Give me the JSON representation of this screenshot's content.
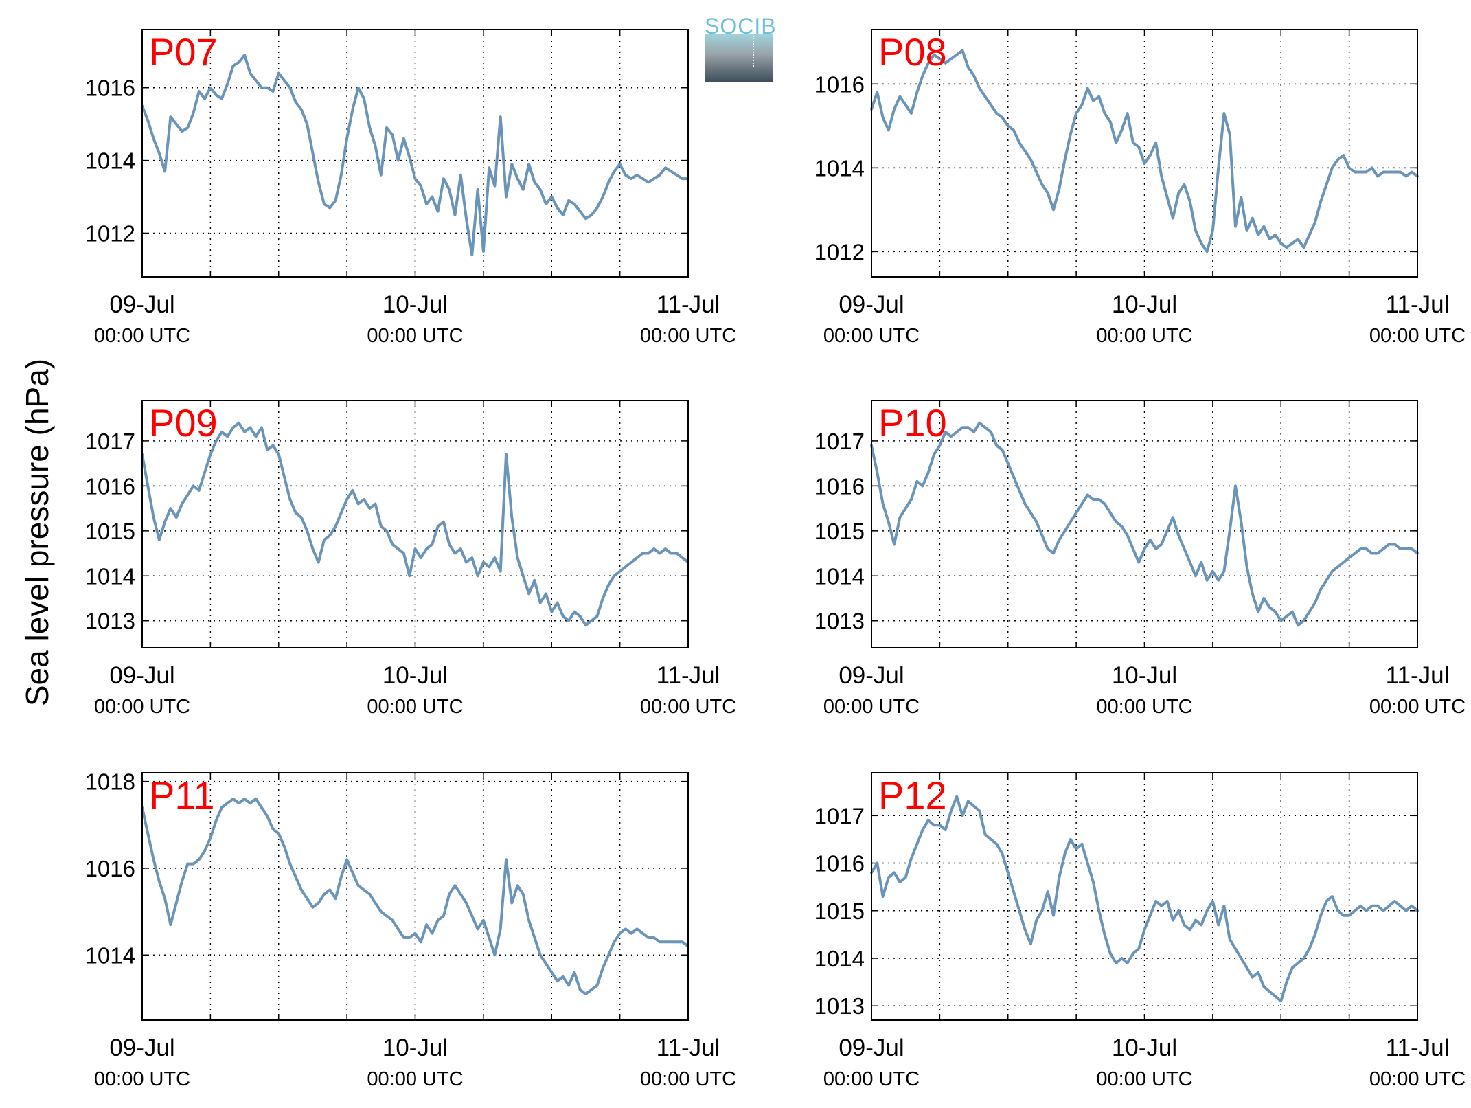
{
  "figure": {
    "ylabel": "Sea level pressure (hPa)",
    "logo_text": "SOCIB",
    "line_color": "#6a94b8",
    "station_color": "#ff0000",
    "xticks": [
      {
        "main": "09-Jul",
        "sub": "00:00 UTC"
      },
      {
        "main": "10-Jul",
        "sub": "00:00 UTC"
      },
      {
        "main": "11-Jul",
        "sub": "00:00 UTC"
      }
    ]
  },
  "chart_data": [
    {
      "type": "line",
      "station": "P07",
      "xlim": [
        0,
        48
      ],
      "ylim": [
        1010.8,
        1017.6
      ],
      "yticks": [
        1012,
        1014,
        1016
      ],
      "x": [
        0,
        0.5,
        1,
        1.5,
        2,
        2.5,
        3,
        3.5,
        4,
        4.5,
        5,
        5.5,
        6,
        6.5,
        7,
        7.5,
        8,
        8.5,
        9,
        9.5,
        10,
        10.5,
        11,
        11.5,
        12,
        12.5,
        13,
        13.5,
        14,
        14.5,
        15,
        15.5,
        16,
        16.5,
        17,
        17.5,
        18,
        18.5,
        19,
        19.5,
        20,
        20.5,
        21,
        21.5,
        22,
        22.5,
        23,
        23.5,
        24,
        24.5,
        25,
        25.5,
        26,
        26.5,
        27,
        27.5,
        28,
        28.5,
        29,
        29.5,
        30,
        30.5,
        31,
        31.5,
        32,
        32.5,
        33,
        33.5,
        34,
        34.5,
        35,
        35.5,
        36,
        36.5,
        37,
        37.5,
        38,
        38.5,
        39,
        39.5,
        40,
        40.5,
        41,
        41.5,
        42,
        42.5,
        43,
        43.5,
        44,
        44.5,
        45,
        45.5,
        46,
        46.5,
        47,
        47.5,
        48
      ],
      "y": [
        1015.5,
        1015.1,
        1014.6,
        1014.2,
        1013.7,
        1015.2,
        1015.0,
        1014.8,
        1014.9,
        1015.3,
        1015.9,
        1015.7,
        1016.0,
        1015.8,
        1015.7,
        1016.1,
        1016.6,
        1016.7,
        1016.9,
        1016.4,
        1016.2,
        1016.0,
        1016.0,
        1015.9,
        1016.4,
        1016.2,
        1016.0,
        1015.6,
        1015.4,
        1015.0,
        1014.2,
        1013.4,
        1012.8,
        1012.7,
        1012.9,
        1013.6,
        1014.6,
        1015.4,
        1016.0,
        1015.7,
        1014.9,
        1014.4,
        1013.6,
        1014.9,
        1014.7,
        1014.0,
        1014.6,
        1014.1,
        1013.5,
        1013.3,
        1012.8,
        1013.0,
        1012.6,
        1013.5,
        1013.2,
        1012.5,
        1013.6,
        1012.4,
        1011.4,
        1013.2,
        1011.5,
        1013.8,
        1013.3,
        1015.2,
        1013.0,
        1013.9,
        1013.5,
        1013.2,
        1013.9,
        1013.4,
        1013.2,
        1012.8,
        1013.0,
        1012.7,
        1012.5,
        1012.9,
        1012.8,
        1012.6,
        1012.4,
        1012.5,
        1012.7,
        1013.0,
        1013.4,
        1013.7,
        1013.9,
        1013.6,
        1013.5,
        1013.6,
        1013.5,
        1013.4,
        1013.5,
        1013.6,
        1013.8,
        1013.7,
        1013.6,
        1013.5,
        1013.5
      ]
    },
    {
      "type": "line",
      "station": "P08",
      "xlim": [
        0,
        48
      ],
      "ylim": [
        1011.4,
        1017.3
      ],
      "yticks": [
        1012,
        1014,
        1016
      ],
      "x": [
        0,
        0.5,
        1,
        1.5,
        2,
        2.5,
        3,
        3.5,
        4,
        4.5,
        5,
        5.5,
        6,
        6.5,
        7,
        7.5,
        8,
        8.5,
        9,
        9.5,
        10,
        10.5,
        11,
        11.5,
        12,
        12.5,
        13,
        13.5,
        14,
        14.5,
        15,
        15.5,
        16,
        16.5,
        17,
        17.5,
        18,
        18.5,
        19,
        19.5,
        20,
        20.5,
        21,
        21.5,
        22,
        22.5,
        23,
        23.5,
        24,
        24.5,
        25,
        25.5,
        26,
        26.5,
        27,
        27.5,
        28,
        28.5,
        29,
        29.5,
        30,
        30.5,
        31,
        31.5,
        32,
        32.5,
        33,
        33.5,
        34,
        34.5,
        35,
        35.5,
        36,
        36.5,
        37,
        37.5,
        38,
        38.5,
        39,
        39.5,
        40,
        40.5,
        41,
        41.5,
        42,
        42.5,
        43,
        43.5,
        44,
        44.5,
        45,
        45.5,
        46,
        46.5,
        47,
        47.5,
        48
      ],
      "y": [
        1015.4,
        1015.8,
        1015.2,
        1014.9,
        1015.4,
        1015.7,
        1015.5,
        1015.3,
        1015.8,
        1016.2,
        1016.5,
        1016.7,
        1016.6,
        1016.5,
        1016.6,
        1016.7,
        1016.8,
        1016.4,
        1016.2,
        1015.9,
        1015.7,
        1015.5,
        1015.3,
        1015.2,
        1015.0,
        1014.9,
        1014.6,
        1014.4,
        1014.2,
        1013.9,
        1013.6,
        1013.4,
        1013.0,
        1013.5,
        1014.2,
        1014.8,
        1015.3,
        1015.5,
        1015.9,
        1015.6,
        1015.7,
        1015.3,
        1015.1,
        1014.6,
        1014.9,
        1015.3,
        1014.6,
        1014.5,
        1014.1,
        1014.3,
        1014.6,
        1013.8,
        1013.3,
        1012.8,
        1013.4,
        1013.6,
        1013.2,
        1012.5,
        1012.2,
        1012.0,
        1012.5,
        1014.0,
        1015.3,
        1014.8,
        1012.6,
        1013.3,
        1012.5,
        1012.8,
        1012.4,
        1012.6,
        1012.3,
        1012.4,
        1012.2,
        1012.1,
        1012.2,
        1012.3,
        1012.1,
        1012.4,
        1012.7,
        1013.2,
        1013.6,
        1014.0,
        1014.2,
        1014.3,
        1014.0,
        1013.9,
        1013.9,
        1013.9,
        1014.0,
        1013.8,
        1013.9,
        1013.9,
        1013.9,
        1013.9,
        1013.8,
        1013.9,
        1013.8
      ]
    },
    {
      "type": "line",
      "station": "P09",
      "xlim": [
        0,
        48
      ],
      "ylim": [
        1012.4,
        1017.9
      ],
      "yticks": [
        1013,
        1014,
        1015,
        1016,
        1017
      ],
      "x": [
        0,
        0.5,
        1,
        1.5,
        2,
        2.5,
        3,
        3.5,
        4,
        4.5,
        5,
        5.5,
        6,
        6.5,
        7,
        7.5,
        8,
        8.5,
        9,
        9.5,
        10,
        10.5,
        11,
        11.5,
        12,
        12.5,
        13,
        13.5,
        14,
        14.5,
        15,
        15.5,
        16,
        16.5,
        17,
        17.5,
        18,
        18.5,
        19,
        19.5,
        20,
        20.5,
        21,
        21.5,
        22,
        22.5,
        23,
        23.5,
        24,
        24.5,
        25,
        25.5,
        26,
        26.5,
        27,
        27.5,
        28,
        28.5,
        29,
        29.5,
        30,
        30.5,
        31,
        31.5,
        32,
        32.5,
        33,
        33.5,
        34,
        34.5,
        35,
        35.5,
        36,
        36.5,
        37,
        37.5,
        38,
        38.5,
        39,
        39.5,
        40,
        40.5,
        41,
        41.5,
        42,
        42.5,
        43,
        43.5,
        44,
        44.5,
        45,
        45.5,
        46,
        46.5,
        47,
        47.5,
        48
      ],
      "y": [
        1016.7,
        1016.0,
        1015.3,
        1014.8,
        1015.2,
        1015.5,
        1015.3,
        1015.6,
        1015.8,
        1016.0,
        1015.9,
        1016.3,
        1016.7,
        1017.0,
        1017.2,
        1017.1,
        1017.3,
        1017.4,
        1017.2,
        1017.3,
        1017.1,
        1017.3,
        1016.8,
        1016.9,
        1016.7,
        1016.2,
        1015.7,
        1015.4,
        1015.3,
        1015.0,
        1014.6,
        1014.3,
        1014.8,
        1014.9,
        1015.1,
        1015.4,
        1015.7,
        1015.9,
        1015.6,
        1015.7,
        1015.5,
        1015.6,
        1015.1,
        1015.0,
        1014.7,
        1014.6,
        1014.5,
        1014.0,
        1014.6,
        1014.4,
        1014.6,
        1014.7,
        1015.1,
        1015.2,
        1014.7,
        1014.5,
        1014.6,
        1014.3,
        1014.4,
        1014.0,
        1014.3,
        1014.2,
        1014.4,
        1014.1,
        1016.7,
        1015.3,
        1014.4,
        1014.0,
        1013.6,
        1013.9,
        1013.4,
        1013.6,
        1013.2,
        1013.4,
        1013.1,
        1013.0,
        1013.2,
        1013.1,
        1012.9,
        1013.0,
        1013.1,
        1013.5,
        1013.8,
        1014.0,
        1014.1,
        1014.2,
        1014.3,
        1014.4,
        1014.5,
        1014.5,
        1014.6,
        1014.5,
        1014.6,
        1014.5,
        1014.5,
        1014.4,
        1014.3
      ]
    },
    {
      "type": "line",
      "station": "P10",
      "xlim": [
        0,
        48
      ],
      "ylim": [
        1012.4,
        1017.9
      ],
      "yticks": [
        1013,
        1014,
        1015,
        1016,
        1017
      ],
      "x": [
        0,
        0.5,
        1,
        1.5,
        2,
        2.5,
        3,
        3.5,
        4,
        4.5,
        5,
        5.5,
        6,
        6.5,
        7,
        7.5,
        8,
        8.5,
        9,
        9.5,
        10,
        10.5,
        11,
        11.5,
        12,
        12.5,
        13,
        13.5,
        14,
        14.5,
        15,
        15.5,
        16,
        16.5,
        17,
        17.5,
        18,
        18.5,
        19,
        19.5,
        20,
        20.5,
        21,
        21.5,
        22,
        22.5,
        23,
        23.5,
        24,
        24.5,
        25,
        25.5,
        26,
        26.5,
        27,
        27.5,
        28,
        28.5,
        29,
        29.5,
        30,
        30.5,
        31,
        31.5,
        32,
        32.5,
        33,
        33.5,
        34,
        34.5,
        35,
        35.5,
        36,
        36.5,
        37,
        37.5,
        38,
        38.5,
        39,
        39.5,
        40,
        40.5,
        41,
        41.5,
        42,
        42.5,
        43,
        43.5,
        44,
        44.5,
        45,
        45.5,
        46,
        46.5,
        47,
        47.5,
        48
      ],
      "y": [
        1016.9,
        1016.3,
        1015.6,
        1015.2,
        1014.7,
        1015.3,
        1015.5,
        1015.7,
        1016.1,
        1016.0,
        1016.3,
        1016.7,
        1016.9,
        1017.2,
        1017.1,
        1017.2,
        1017.3,
        1017.3,
        1017.2,
        1017.4,
        1017.3,
        1017.2,
        1016.9,
        1016.8,
        1016.5,
        1016.2,
        1015.9,
        1015.6,
        1015.4,
        1015.2,
        1014.9,
        1014.6,
        1014.5,
        1014.8,
        1015.0,
        1015.2,
        1015.4,
        1015.6,
        1015.8,
        1015.7,
        1015.7,
        1015.6,
        1015.4,
        1015.2,
        1015.1,
        1014.9,
        1014.6,
        1014.3,
        1014.6,
        1014.8,
        1014.6,
        1014.7,
        1015.0,
        1015.3,
        1014.9,
        1014.6,
        1014.3,
        1014.0,
        1014.3,
        1013.9,
        1014.1,
        1013.9,
        1014.1,
        1015.0,
        1016.0,
        1015.2,
        1014.2,
        1013.6,
        1013.2,
        1013.5,
        1013.3,
        1013.2,
        1013.0,
        1013.1,
        1013.2,
        1012.9,
        1013.0,
        1013.2,
        1013.4,
        1013.7,
        1013.9,
        1014.1,
        1014.2,
        1014.3,
        1014.4,
        1014.5,
        1014.6,
        1014.6,
        1014.5,
        1014.5,
        1014.6,
        1014.7,
        1014.7,
        1014.6,
        1014.6,
        1014.6,
        1014.5
      ]
    },
    {
      "type": "line",
      "station": "P11",
      "xlim": [
        0,
        48
      ],
      "ylim": [
        1012.5,
        1018.2
      ],
      "yticks": [
        1014,
        1016,
        1018
      ],
      "x": [
        0,
        0.5,
        1,
        1.5,
        2,
        2.5,
        3,
        3.5,
        4,
        4.5,
        5,
        5.5,
        6,
        6.5,
        7,
        7.5,
        8,
        8.5,
        9,
        9.5,
        10,
        10.5,
        11,
        11.5,
        12,
        12.5,
        13,
        13.5,
        14,
        14.5,
        15,
        15.5,
        16,
        16.5,
        17,
        17.5,
        18,
        18.5,
        19,
        19.5,
        20,
        20.5,
        21,
        21.5,
        22,
        22.5,
        23,
        23.5,
        24,
        24.5,
        25,
        25.5,
        26,
        26.5,
        27,
        27.5,
        28,
        28.5,
        29,
        29.5,
        30,
        30.5,
        31,
        31.5,
        32,
        32.5,
        33,
        33.5,
        34,
        34.5,
        35,
        35.5,
        36,
        36.5,
        37,
        37.5,
        38,
        38.5,
        39,
        39.5,
        40,
        40.5,
        41,
        41.5,
        42,
        42.5,
        43,
        43.5,
        44,
        44.5,
        45,
        45.5,
        46,
        46.5,
        47,
        47.5,
        48
      ],
      "y": [
        1017.4,
        1016.8,
        1016.2,
        1015.7,
        1015.3,
        1014.7,
        1015.2,
        1015.7,
        1016.1,
        1016.1,
        1016.2,
        1016.4,
        1016.7,
        1017.1,
        1017.4,
        1017.5,
        1017.6,
        1017.5,
        1017.6,
        1017.5,
        1017.6,
        1017.4,
        1017.2,
        1016.9,
        1016.8,
        1016.5,
        1016.1,
        1015.8,
        1015.5,
        1015.3,
        1015.1,
        1015.2,
        1015.4,
        1015.5,
        1015.3,
        1015.8,
        1016.2,
        1015.9,
        1015.6,
        1015.5,
        1015.4,
        1015.2,
        1015.0,
        1014.9,
        1014.8,
        1014.6,
        1014.4,
        1014.4,
        1014.5,
        1014.3,
        1014.7,
        1014.5,
        1014.8,
        1014.9,
        1015.4,
        1015.6,
        1015.4,
        1015.2,
        1014.9,
        1014.6,
        1014.8,
        1014.4,
        1014.0,
        1014.6,
        1016.2,
        1015.2,
        1015.6,
        1015.4,
        1014.8,
        1014.4,
        1014.0,
        1013.8,
        1013.6,
        1013.4,
        1013.5,
        1013.3,
        1013.6,
        1013.2,
        1013.1,
        1013.2,
        1013.3,
        1013.7,
        1014.0,
        1014.3,
        1014.5,
        1014.6,
        1014.5,
        1014.6,
        1014.5,
        1014.4,
        1014.4,
        1014.3,
        1014.3,
        1014.3,
        1014.3,
        1014.3,
        1014.2
      ]
    },
    {
      "type": "line",
      "station": "P12",
      "xlim": [
        0,
        48
      ],
      "ylim": [
        1012.7,
        1017.9
      ],
      "yticks": [
        1013,
        1014,
        1015,
        1016,
        1017
      ],
      "x": [
        0,
        0.5,
        1,
        1.5,
        2,
        2.5,
        3,
        3.5,
        4,
        4.5,
        5,
        5.5,
        6,
        6.5,
        7,
        7.5,
        8,
        8.5,
        9,
        9.5,
        10,
        10.5,
        11,
        11.5,
        12,
        12.5,
        13,
        13.5,
        14,
        14.5,
        15,
        15.5,
        16,
        16.5,
        17,
        17.5,
        18,
        18.5,
        19,
        19.5,
        20,
        20.5,
        21,
        21.5,
        22,
        22.5,
        23,
        23.5,
        24,
        24.5,
        25,
        25.5,
        26,
        26.5,
        27,
        27.5,
        28,
        28.5,
        29,
        29.5,
        30,
        30.5,
        31,
        31.5,
        32,
        32.5,
        33,
        33.5,
        34,
        34.5,
        35,
        35.5,
        36,
        36.5,
        37,
        37.5,
        38,
        38.5,
        39,
        39.5,
        40,
        40.5,
        41,
        41.5,
        42,
        42.5,
        43,
        43.5,
        44,
        44.5,
        45,
        45.5,
        46,
        46.5,
        47,
        47.5,
        48
      ],
      "y": [
        1015.8,
        1016.0,
        1015.3,
        1015.7,
        1015.8,
        1015.6,
        1015.7,
        1016.1,
        1016.4,
        1016.7,
        1016.9,
        1016.8,
        1016.8,
        1016.7,
        1017.1,
        1017.4,
        1017.0,
        1017.3,
        1017.2,
        1017.1,
        1016.6,
        1016.5,
        1016.4,
        1016.2,
        1015.8,
        1015.4,
        1015.0,
        1014.6,
        1014.3,
        1014.8,
        1015.0,
        1015.4,
        1014.9,
        1015.7,
        1016.2,
        1016.5,
        1016.3,
        1016.4,
        1016.0,
        1015.6,
        1015.0,
        1014.5,
        1014.1,
        1013.9,
        1014.0,
        1013.9,
        1014.1,
        1014.2,
        1014.6,
        1014.9,
        1015.2,
        1015.1,
        1015.2,
        1014.8,
        1015.0,
        1014.7,
        1014.6,
        1014.8,
        1014.7,
        1015.0,
        1015.2,
        1014.7,
        1015.1,
        1014.4,
        1014.2,
        1014.0,
        1013.8,
        1013.6,
        1013.7,
        1013.4,
        1013.3,
        1013.2,
        1013.1,
        1013.5,
        1013.8,
        1013.9,
        1014.0,
        1014.2,
        1014.5,
        1014.9,
        1015.2,
        1015.3,
        1015.0,
        1014.9,
        1014.9,
        1015.0,
        1015.1,
        1015.0,
        1015.1,
        1015.1,
        1015.0,
        1015.1,
        1015.2,
        1015.1,
        1015.0,
        1015.1,
        1015.0
      ]
    }
  ]
}
